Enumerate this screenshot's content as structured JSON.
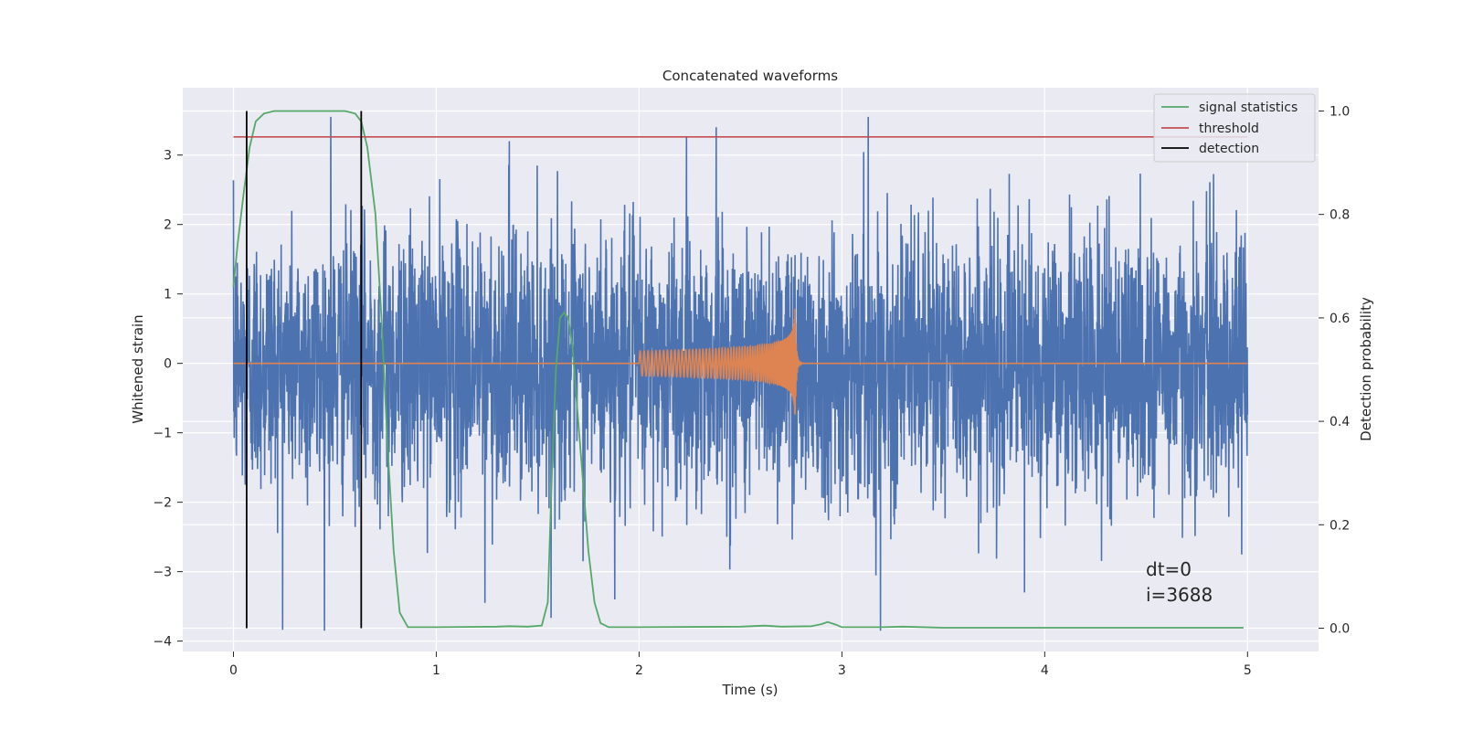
{
  "chart_data": {
    "type": "line",
    "title": "Concatenated waveforms",
    "xlabel": "Time (s)",
    "ylabel": "Whitened strain",
    "y2label": "Detection probability",
    "xlim": [
      -0.25,
      5.35
    ],
    "ylim": [
      -4.15,
      3.97
    ],
    "y2lim": [
      -0.045,
      1.045
    ],
    "xticks": [
      0,
      1,
      2,
      3,
      4,
      5
    ],
    "yticks": [
      -4,
      -3,
      -2,
      -1,
      0,
      1,
      2,
      3
    ],
    "y2ticks": [
      0.0,
      0.2,
      0.4,
      0.6,
      0.8,
      1.0
    ],
    "grid": true,
    "legend_position": "top-right",
    "annotations": [
      "dt=0",
      "i=3688"
    ],
    "colors": {
      "noise": "#4c72b0",
      "waveform": "#dd8452",
      "signal_statistics": "#55a868",
      "threshold": "#c44e52",
      "detection": "#000000",
      "plot_background": "#eaeaf2",
      "grid": "#ffffff"
    },
    "series": [
      {
        "key": "noise",
        "axis": "left",
        "x_range": [
          0,
          5
        ],
        "std": 0.95,
        "notable_peaks": [
          {
            "x": 0.48,
            "y": 3.55
          },
          {
            "x": 1.36,
            "y": 3.2
          },
          {
            "x": 2.38,
            "y": 3.4
          },
          {
            "x": 3.13,
            "y": 3.55
          },
          {
            "x": 3.19,
            "y": -3.85
          },
          {
            "x": 1.24,
            "y": -3.45
          },
          {
            "x": 1.88,
            "y": -3.4
          },
          {
            "x": 3.9,
            "y": -3.3
          }
        ]
      },
      {
        "key": "waveform",
        "axis": "left",
        "x_range": [
          2.0,
          2.8
        ],
        "merger_time": 2.77,
        "peak_amplitude": 1.05
      },
      {
        "key": "signal_statistics",
        "name": "signal statistics",
        "axis": "right",
        "x": [
          0.0,
          0.02,
          0.05,
          0.08,
          0.11,
          0.15,
          0.2,
          0.3,
          0.45,
          0.55,
          0.6,
          0.63,
          0.66,
          0.7,
          0.73,
          0.76,
          0.79,
          0.82,
          0.86,
          1.0,
          1.3,
          1.36,
          1.45,
          1.52,
          1.55,
          1.57,
          1.59,
          1.61,
          1.63,
          1.65,
          1.67,
          1.69,
          1.72,
          1.75,
          1.78,
          1.81,
          1.85,
          2.0,
          2.5,
          2.62,
          2.7,
          2.85,
          2.9,
          2.93,
          2.97,
          3.0,
          3.2,
          3.3,
          3.5,
          4.0,
          4.5,
          4.98
        ],
        "y": [
          0.66,
          0.74,
          0.84,
          0.93,
          0.98,
          0.995,
          1.0,
          1.0,
          1.0,
          1.0,
          0.995,
          0.98,
          0.93,
          0.8,
          0.6,
          0.35,
          0.15,
          0.03,
          0.002,
          0.002,
          0.003,
          0.004,
          0.003,
          0.005,
          0.05,
          0.3,
          0.5,
          0.6,
          0.61,
          0.6,
          0.55,
          0.45,
          0.3,
          0.15,
          0.05,
          0.01,
          0.002,
          0.002,
          0.003,
          0.005,
          0.003,
          0.004,
          0.008,
          0.012,
          0.007,
          0.002,
          0.002,
          0.003,
          0.001,
          0.001,
          0.001,
          0.001
        ]
      },
      {
        "key": "threshold",
        "name": "threshold",
        "axis": "right",
        "x": [
          0,
          5
        ],
        "y": [
          0.95,
          0.95
        ]
      },
      {
        "key": "detection",
        "name": "detection",
        "axis": "right",
        "x_values": [
          0.065,
          0.63
        ],
        "y_range": [
          0,
          1
        ]
      }
    ]
  }
}
